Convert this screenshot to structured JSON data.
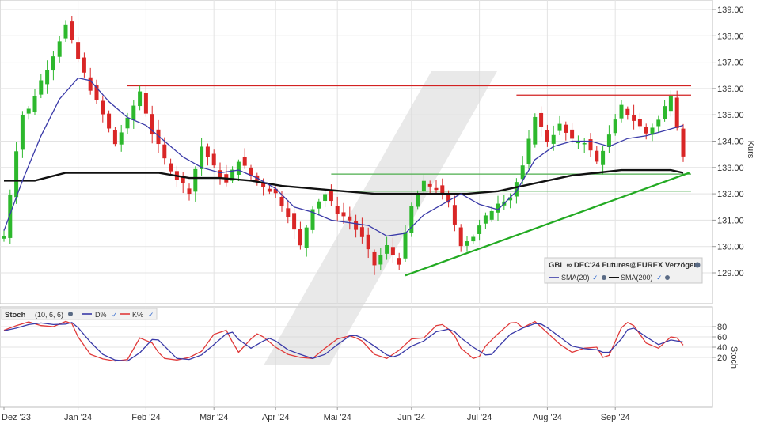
{
  "colors": {
    "up": "#2db82d",
    "down": "#d92626",
    "sma20": "#3a3aa8",
    "sma200": "#111111",
    "resistance": "#d22222",
    "support": "#4cae4c",
    "trend": "#22aa22",
    "grid": "#e3e3e3",
    "stoch_d": "#3a3aa8",
    "stoch_k": "#e03a3a"
  },
  "icons": {
    "settings": "gear-icon",
    "visibility": "check-icon"
  },
  "chart_data": [
    {
      "type": "candlestick",
      "ylabel": "Kurs",
      "ylim": [
        128.0,
        139.4
      ],
      "yticks": [
        "139.00",
        "138.00",
        "137.00",
        "136.00",
        "135.00",
        "134.00",
        "133.00",
        "132.00",
        "131.00",
        "130.00",
        "129.00"
      ],
      "x_ticks": [
        "Dez '23",
        "Jan '24",
        "Feb '24",
        "Mär '24",
        "Apr '24",
        "Mai '24",
        "Jun '24",
        "Jul '24",
        "Aug '24",
        "Sep '24"
      ],
      "grid": true,
      "legend_position": "bottom-right",
      "legend": {
        "title": "GBL ∞ DEC'24 Futures@EUREX Verzögert",
        "items": [
          {
            "label": "SMA(20)"
          },
          {
            "label": "SMA(200)"
          }
        ]
      },
      "price_path": [
        [
          0,
          130.4
        ],
        [
          1,
          132.0
        ],
        [
          2,
          133.7
        ],
        [
          3,
          135.0
        ],
        [
          4,
          135.2
        ],
        [
          6,
          136.3
        ],
        [
          8,
          137.3
        ],
        [
          10,
          138.4
        ],
        [
          12,
          137.1
        ],
        [
          14,
          136.0
        ],
        [
          16,
          135.0
        ],
        [
          18,
          133.9
        ],
        [
          20,
          134.8
        ],
        [
          22,
          135.9
        ],
        [
          24,
          134.3
        ],
        [
          26,
          133.3
        ],
        [
          28,
          132.6
        ],
        [
          30,
          132.1
        ],
        [
          32,
          133.8
        ],
        [
          34,
          133.0
        ],
        [
          36,
          132.4
        ],
        [
          38,
          133.3
        ],
        [
          40,
          132.7
        ],
        [
          42,
          132.3
        ],
        [
          44,
          132.0
        ],
        [
          46,
          131.2
        ],
        [
          48,
          130.0
        ],
        [
          50,
          131.5
        ],
        [
          52,
          132.0
        ],
        [
          54,
          131.3
        ],
        [
          56,
          131.0
        ],
        [
          58,
          130.3
        ],
        [
          60,
          129.3
        ],
        [
          62,
          130.0
        ],
        [
          64,
          129.4
        ],
        [
          66,
          131.5
        ],
        [
          68,
          132.4
        ],
        [
          70,
          132.2
        ],
        [
          72,
          131.6
        ],
        [
          74,
          130.1
        ],
        [
          76,
          130.4
        ],
        [
          78,
          131.1
        ],
        [
          80,
          131.7
        ],
        [
          82,
          131.9
        ],
        [
          84,
          133.0
        ],
        [
          86,
          135.0
        ],
        [
          88,
          134.0
        ],
        [
          90,
          134.6
        ],
        [
          92,
          134.0
        ],
        [
          94,
          134.0
        ],
        [
          96,
          133.2
        ],
        [
          98,
          134.2
        ],
        [
          100,
          135.3
        ],
        [
          102,
          134.8
        ],
        [
          104,
          134.3
        ],
        [
          106,
          134.8
        ],
        [
          108,
          135.8
        ],
        [
          109,
          134.6
        ],
        [
          110,
          133.5
        ]
      ],
      "sma20_path": [
        [
          0,
          130.6
        ],
        [
          3,
          132.5
        ],
        [
          6,
          134.2
        ],
        [
          9,
          135.6
        ],
        [
          12,
          136.4
        ],
        [
          14,
          136.3
        ],
        [
          17,
          135.5
        ],
        [
          20,
          134.9
        ],
        [
          23,
          134.6
        ],
        [
          26,
          134.0
        ],
        [
          29,
          133.4
        ],
        [
          32,
          133.0
        ],
        [
          35,
          132.8
        ],
        [
          38,
          132.9
        ],
        [
          41,
          132.6
        ],
        [
          44,
          132.2
        ],
        [
          47,
          131.5
        ],
        [
          50,
          131.3
        ],
        [
          53,
          131.0
        ],
        [
          56,
          130.9
        ],
        [
          59,
          130.8
        ],
        [
          62,
          130.4
        ],
        [
          65,
          130.5
        ],
        [
          68,
          131.2
        ],
        [
          71,
          131.6
        ],
        [
          74,
          132.0
        ],
        [
          77,
          131.6
        ],
        [
          80,
          131.4
        ],
        [
          83,
          132.1
        ],
        [
          86,
          133.3
        ],
        [
          89,
          133.8
        ],
        [
          92,
          134.0
        ],
        [
          95,
          134.0
        ],
        [
          98,
          133.8
        ],
        [
          101,
          134.1
        ],
        [
          104,
          134.2
        ],
        [
          107,
          134.4
        ],
        [
          110,
          134.6
        ]
      ],
      "sma200_path": [
        [
          0,
          132.5
        ],
        [
          5,
          132.5
        ],
        [
          10,
          132.8
        ],
        [
          15,
          132.8
        ],
        [
          20,
          132.8
        ],
        [
          25,
          132.8
        ],
        [
          30,
          132.6
        ],
        [
          35,
          132.6
        ],
        [
          40,
          132.5
        ],
        [
          45,
          132.3
        ],
        [
          50,
          132.2
        ],
        [
          55,
          132.1
        ],
        [
          60,
          132.0
        ],
        [
          65,
          132.0
        ],
        [
          70,
          132.0
        ],
        [
          75,
          132.0
        ],
        [
          80,
          132.1
        ],
        [
          84,
          132.3
        ],
        [
          88,
          132.5
        ],
        [
          92,
          132.7
        ],
        [
          96,
          132.8
        ],
        [
          100,
          132.9
        ],
        [
          104,
          132.9
        ],
        [
          108,
          132.9
        ],
        [
          110,
          132.8
        ]
      ],
      "horizontal_lines": [
        {
          "kind": "resistance",
          "y": 136.1,
          "x_from": 20,
          "x_to": 110
        },
        {
          "kind": "resistance",
          "y": 135.75,
          "x_from": 83,
          "x_to": 110
        },
        {
          "kind": "support",
          "y": 132.75,
          "x_from": 53,
          "x_to": 110
        },
        {
          "kind": "support",
          "y": 132.1,
          "x_from": 53,
          "x_to": 110
        }
      ],
      "trend_line": {
        "from": [
          65,
          128.9
        ],
        "to": [
          111,
          132.8
        ]
      }
    },
    {
      "type": "line",
      "title": "Stoch",
      "params": "(10, 6, 6)",
      "ylabel": "Stoch",
      "ylim": [
        5,
        95
      ],
      "yticks": [
        "80",
        "60",
        "40",
        "20"
      ],
      "series": [
        {
          "name": "D%",
          "points": [
            [
              0,
              72
            ],
            [
              2,
              77
            ],
            [
              4,
              84
            ],
            [
              6,
              87
            ],
            [
              8,
              84
            ],
            [
              10,
              85
            ],
            [
              11,
              88
            ],
            [
              12,
              78
            ],
            [
              14,
              50
            ],
            [
              16,
              26
            ],
            [
              18,
              15
            ],
            [
              20,
              13
            ],
            [
              22,
              29
            ],
            [
              24,
              55
            ],
            [
              25,
              54
            ],
            [
              26,
              42
            ],
            [
              28,
              18
            ],
            [
              30,
              16
            ],
            [
              32,
              25
            ],
            [
              34,
              45
            ],
            [
              36,
              66
            ],
            [
              37,
              69
            ],
            [
              38,
              55
            ],
            [
              40,
              38
            ],
            [
              42,
              52
            ],
            [
              43,
              57
            ],
            [
              44,
              52
            ],
            [
              46,
              35
            ],
            [
              48,
              26
            ],
            [
              50,
              18
            ],
            [
              52,
              26
            ],
            [
              54,
              45
            ],
            [
              56,
              62
            ],
            [
              57,
              63
            ],
            [
              58,
              58
            ],
            [
              60,
              42
            ],
            [
              62,
              25
            ],
            [
              63,
              21
            ],
            [
              64,
              25
            ],
            [
              66,
              42
            ],
            [
              68,
              52
            ],
            [
              70,
              70
            ],
            [
              72,
              75
            ],
            [
              73,
              70
            ],
            [
              74,
              58
            ],
            [
              76,
              40
            ],
            [
              78,
              25
            ],
            [
              79,
              26
            ],
            [
              80,
              40
            ],
            [
              82,
              65
            ],
            [
              84,
              77
            ],
            [
              86,
              86
            ],
            [
              87,
              85
            ],
            [
              88,
              78
            ],
            [
              90,
              60
            ],
            [
              92,
              42
            ],
            [
              94,
              37
            ],
            [
              96,
              35
            ],
            [
              97,
              30
            ],
            [
              98,
              30
            ],
            [
              100,
              56
            ],
            [
              101,
              74
            ],
            [
              102,
              77
            ],
            [
              104,
              60
            ],
            [
              106,
              45
            ],
            [
              108,
              54
            ],
            [
              110,
              50
            ]
          ]
        },
        {
          "name": "K%",
          "points": [
            [
              0,
              73
            ],
            [
              2,
              82
            ],
            [
              4,
              89
            ],
            [
              6,
              82
            ],
            [
              8,
              80
            ],
            [
              10,
              90
            ],
            [
              11,
              86
            ],
            [
              12,
              60
            ],
            [
              14,
              26
            ],
            [
              16,
              17
            ],
            [
              18,
              13
            ],
            [
              20,
              16
            ],
            [
              22,
              58
            ],
            [
              24,
              48
            ],
            [
              25,
              30
            ],
            [
              26,
              18
            ],
            [
              28,
              15
            ],
            [
              30,
              20
            ],
            [
              32,
              32
            ],
            [
              34,
              65
            ],
            [
              36,
              73
            ],
            [
              37,
              50
            ],
            [
              38,
              30
            ],
            [
              40,
              56
            ],
            [
              41,
              66
            ],
            [
              42,
              60
            ],
            [
              44,
              40
            ],
            [
              46,
              26
            ],
            [
              48,
              20
            ],
            [
              50,
              18
            ],
            [
              52,
              38
            ],
            [
              54,
              56
            ],
            [
              56,
              62
            ],
            [
              57,
              58
            ],
            [
              58,
              52
            ],
            [
              60,
              26
            ],
            [
              62,
              18
            ],
            [
              64,
              34
            ],
            [
              66,
              56
            ],
            [
              68,
              58
            ],
            [
              70,
              82
            ],
            [
              71,
              84
            ],
            [
              72,
              75
            ],
            [
              73,
              62
            ],
            [
              74,
              38
            ],
            [
              76,
              18
            ],
            [
              77,
              22
            ],
            [
              78,
              42
            ],
            [
              80,
              66
            ],
            [
              82,
              87
            ],
            [
              83,
              88
            ],
            [
              84,
              78
            ],
            [
              86,
              90
            ],
            [
              88,
              68
            ],
            [
              90,
              46
            ],
            [
              92,
              30
            ],
            [
              94,
              38
            ],
            [
              96,
              40
            ],
            [
              97,
              20
            ],
            [
              98,
              24
            ],
            [
              100,
              78
            ],
            [
              101,
              88
            ],
            [
              102,
              82
            ],
            [
              104,
              48
            ],
            [
              106,
              38
            ],
            [
              108,
              60
            ],
            [
              109,
              58
            ],
            [
              110,
              44
            ]
          ]
        }
      ]
    }
  ]
}
